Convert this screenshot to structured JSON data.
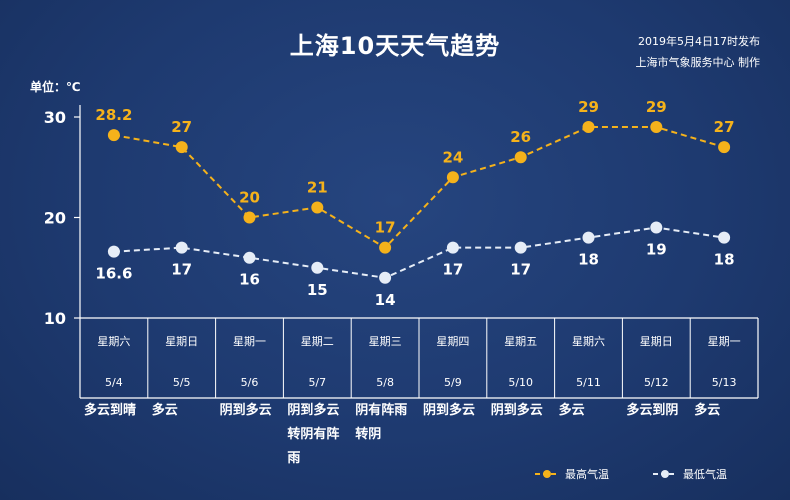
{
  "chart_data": {
    "type": "line",
    "title": "上海10天天气趋势",
    "publish_line1": "2019年5月4日17时发布",
    "publish_line2": "上海市气象服务中心  制作",
    "unit_label": "单位：℃",
    "ylim": [
      10,
      30
    ],
    "y_ticks": [
      "10",
      "20",
      "30"
    ],
    "y_tick_values": [
      10,
      20,
      30
    ],
    "days": [
      {
        "weekday": "星期六",
        "date": "5/4",
        "weather": [
          "多云到晴"
        ]
      },
      {
        "weekday": "星期日",
        "date": "5/5",
        "weather": [
          "多云"
        ]
      },
      {
        "weekday": "星期一",
        "date": "5/6",
        "weather": [
          "阴到多云"
        ]
      },
      {
        "weekday": "星期二",
        "date": "5/7",
        "weather": [
          "阴到多云",
          "转阴有阵",
          "雨"
        ]
      },
      {
        "weekday": "星期三",
        "date": "5/8",
        "weather": [
          "阴有阵雨",
          "转阴"
        ]
      },
      {
        "weekday": "星期四",
        "date": "5/9",
        "weather": [
          "阴到多云"
        ]
      },
      {
        "weekday": "星期五",
        "date": "5/10",
        "weather": [
          "阴到多云"
        ]
      },
      {
        "weekday": "星期六",
        "date": "5/11",
        "weather": [
          "多云"
        ]
      },
      {
        "weekday": "星期日",
        "date": "5/12",
        "weather": [
          "多云到阴"
        ]
      },
      {
        "weekday": "星期一",
        "date": "5/13",
        "weather": [
          "多云"
        ]
      }
    ],
    "series": [
      {
        "name": "最高气温",
        "color": "#f5b21b",
        "values": [
          28.2,
          27,
          20,
          21,
          17,
          24,
          26,
          29,
          29,
          27
        ],
        "labels": [
          "28.2",
          "27",
          "20",
          "21",
          "17",
          "24",
          "26",
          "29",
          "29",
          "27"
        ]
      },
      {
        "name": "最低气温",
        "color": "#e6edf7",
        "values": [
          16.6,
          17,
          16,
          15,
          14,
          17,
          17,
          18,
          19,
          18
        ],
        "labels": [
          "16.6",
          "17",
          "16",
          "15",
          "14",
          "17",
          "17",
          "18",
          "19",
          "18"
        ]
      }
    ],
    "legend_placement": "bottom-right",
    "grid": false
  }
}
